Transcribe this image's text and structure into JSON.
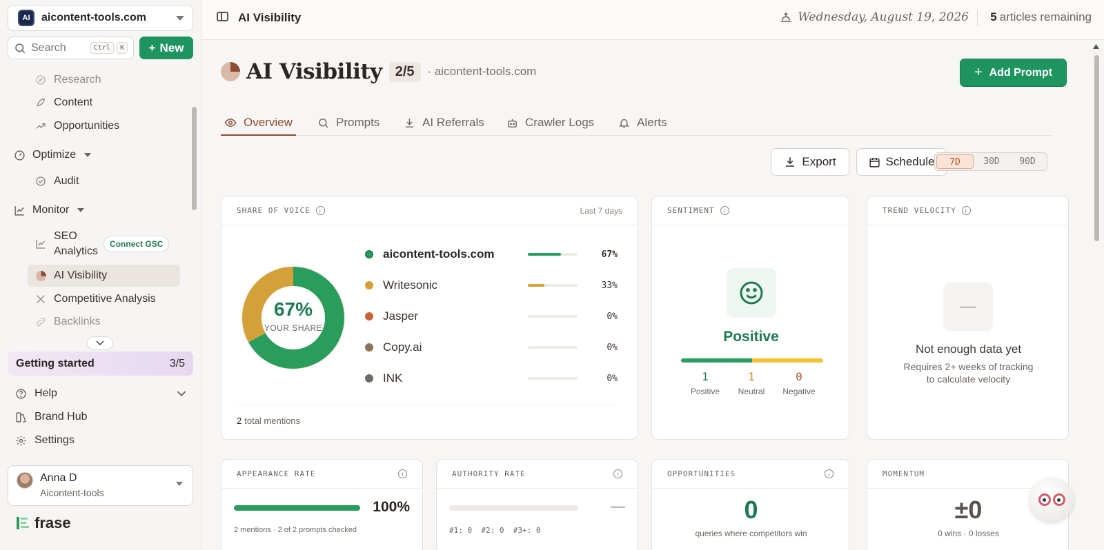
{
  "workspace": {
    "name": "aicontent-tools.com",
    "logo_text": "AI"
  },
  "search": {
    "placeholder": "Search",
    "kbd1": "Ctrl",
    "kbd2": "K"
  },
  "new_button": "New",
  "sidebar": {
    "research": "Research",
    "content": "Content",
    "opportunities": "Opportunities",
    "optimize": "Optimize",
    "audit": "Audit",
    "monitor": "Monitor",
    "seo_analytics_1": "SEO",
    "seo_analytics_2": "Analytics",
    "connect_gsc": "Connect GSC",
    "ai_visibility": "AI Visibility",
    "competitive_analysis": "Competitive Analysis",
    "backlinks": "Backlinks"
  },
  "getting_started": {
    "label": "Getting started",
    "progress": "3/5"
  },
  "bottom": {
    "help": "Help",
    "brand_hub": "Brand Hub",
    "settings": "Settings"
  },
  "user": {
    "name": "Anna D",
    "org": "Aicontent-tools"
  },
  "brand": "frase",
  "topbar": {
    "title": "AI Visibility",
    "date": "Wednesday, August 19, 2026",
    "remaining_count": "5",
    "remaining_label": "articles remaining"
  },
  "page": {
    "title": "AI Visibility",
    "ratio": "2/5",
    "domain": "· aicontent-tools.com",
    "add_prompt": "Add Prompt"
  },
  "tabs": [
    "Overview",
    "Prompts",
    "AI Referrals",
    "Crawler Logs",
    "Alerts"
  ],
  "toolbar": {
    "export": "Export",
    "schedule": "Schedule",
    "ranges": [
      "7D",
      "30D",
      "90D"
    ],
    "active_range": "7D"
  },
  "share_of_voice": {
    "label": "SHARE OF VOICE",
    "meta": "Last 7 days",
    "center_value": "67%",
    "center_label": "YOUR SHARE",
    "total_count": "2",
    "total_label": "total mentions",
    "colors": {
      "you": "#2a9d5c",
      "writesonic": "#d4a03a",
      "jasper": "#c8623c",
      "copyai": "#8b7459",
      "ink": "#6f6a66"
    },
    "rows": [
      {
        "name": "aicontent-tools.com",
        "pct": "67%",
        "value": 67
      },
      {
        "name": "Writesonic",
        "pct": "33%",
        "value": 33
      },
      {
        "name": "Jasper",
        "pct": "0%",
        "value": 0
      },
      {
        "name": "Copy.ai",
        "pct": "0%",
        "value": 0
      },
      {
        "name": "INK",
        "pct": "0%",
        "value": 0
      }
    ]
  },
  "sentiment": {
    "label": "SENTIMENT",
    "value": "Positive",
    "positive": "1",
    "neutral": "1",
    "negative": "0",
    "positive_label": "Positive",
    "neutral_label": "Neutral",
    "negative_label": "Negative"
  },
  "trend_velocity": {
    "label": "TREND VELOCITY",
    "dash": "—",
    "message": "Not enough data yet",
    "sub1": "Requires 2+ weeks of tracking",
    "sub2": "to calculate velocity"
  },
  "appearance_rate": {
    "label": "APPEARANCE RATE",
    "value": "100%",
    "fill": 1.0,
    "sub": "2 mentions · 2 of 2 prompts checked"
  },
  "authority_rate": {
    "label": "AUTHORITY RATE",
    "value": "—",
    "sub": "#1: 0  #2: 0  #3+: 0"
  },
  "opportunities": {
    "label": "OPPORTUNITIES",
    "value": "0",
    "sub": "queries where competitors win"
  },
  "momentum": {
    "label": "MOMENTUM",
    "value": "±0",
    "sub": "0 wins · 0 losses"
  }
}
